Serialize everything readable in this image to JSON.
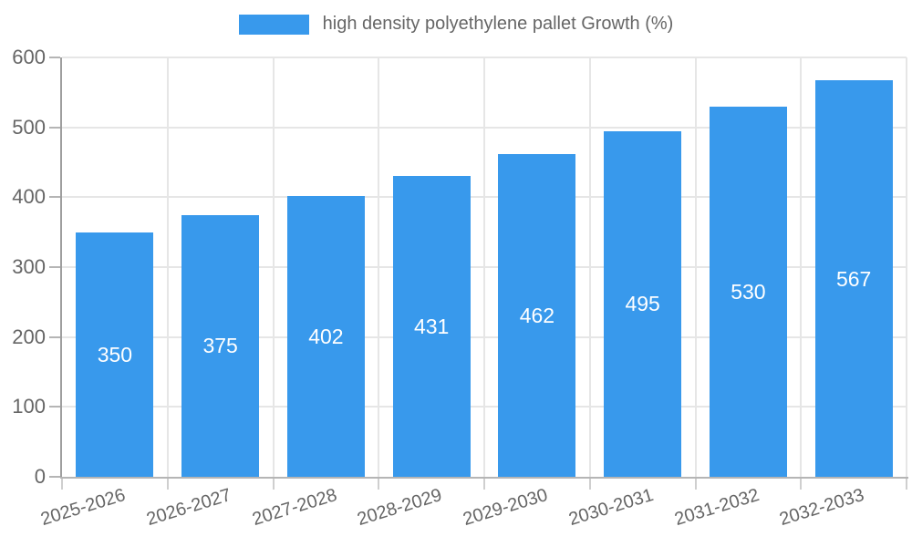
{
  "chart_data": {
    "type": "bar",
    "title": "",
    "legend": {
      "label": "high density polyethylene pallet Growth (%)",
      "position": "top"
    },
    "categories": [
      "2025-2026",
      "2026-2027",
      "2027-2028",
      "2028-2029",
      "2029-2030",
      "2030-2031",
      "2031-2032",
      "2032-2033"
    ],
    "series": [
      {
        "name": "high density polyethylene pallet Growth (%)",
        "values": [
          350,
          375,
          402,
          431,
          462,
          495,
          530,
          567
        ]
      }
    ],
    "xlabel": "",
    "ylabel": "",
    "ylim": [
      0,
      600
    ],
    "yticks": [
      0,
      100,
      200,
      300,
      400,
      500,
      600
    ],
    "grid": true,
    "colors": {
      "bar": "#3899EC",
      "value_label": "#FFFFFF",
      "tick_label": "#666666",
      "grid_line": "#E6E6E6",
      "axis_y": "#9E9E9E",
      "axis_x": "#B5B5B5",
      "y_tick_mark": "#B5B5B5",
      "x_tick_mark": "#CFCFCF"
    }
  }
}
